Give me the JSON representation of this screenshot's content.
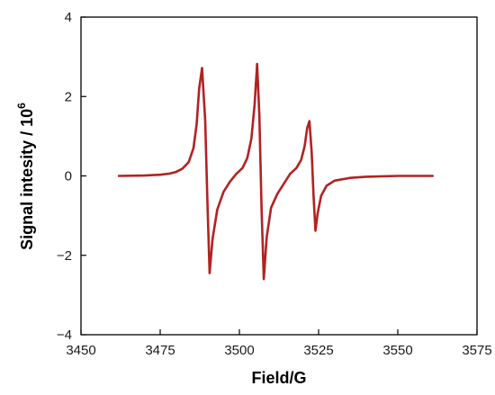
{
  "chart_data": {
    "type": "line",
    "title": "",
    "xlabel": "Field/G",
    "ylabel_main": "Signal intesity / 10",
    "ylabel_exponent": "6",
    "xlim": [
      3450,
      3575
    ],
    "ylim": [
      -4,
      4
    ],
    "x_ticks": [
      3450,
      3475,
      3500,
      3525,
      3550,
      3575
    ],
    "y_ticks": [
      -4,
      -2,
      0,
      2,
      4
    ],
    "x_tick_labels": [
      "3450",
      "3475",
      "3500",
      "3525",
      "3550",
      "3575"
    ],
    "y_tick_labels": [
      "−4",
      "−2",
      "0",
      "2",
      "4"
    ],
    "grid": false,
    "legend": "none",
    "series": [
      {
        "color": "#b22222",
        "x": [
          3462,
          3470,
          3475,
          3478,
          3480,
          3482,
          3484,
          3485.5,
          3486.5,
          3487.3,
          3488.2,
          3489.2,
          3489.9,
          3490.6,
          3491.5,
          3493,
          3495,
          3497,
          3499,
          3501,
          3502.5,
          3503.8,
          3504.8,
          3505.6,
          3506.3,
          3507.0,
          3507.7,
          3508.6,
          3510,
          3512,
          3514,
          3516,
          3518,
          3519.5,
          3520.6,
          3521.4,
          3522.1,
          3522.8,
          3523.4,
          3524.0,
          3524.7,
          3525.8,
          3527.5,
          3530,
          3535,
          3540,
          3550,
          3561
        ],
        "y": [
          0.0,
          0.01,
          0.03,
          0.06,
          0.1,
          0.18,
          0.35,
          0.7,
          1.3,
          2.2,
          2.72,
          1.4,
          -0.6,
          -2.45,
          -1.6,
          -0.85,
          -0.4,
          -0.15,
          0.05,
          0.2,
          0.45,
          0.95,
          1.8,
          2.82,
          1.5,
          -0.8,
          -2.6,
          -1.55,
          -0.8,
          -0.45,
          -0.2,
          0.05,
          0.2,
          0.4,
          0.75,
          1.2,
          1.38,
          0.6,
          -0.5,
          -1.38,
          -0.95,
          -0.5,
          -0.25,
          -0.12,
          -0.05,
          -0.02,
          0.0,
          0.0
        ]
      }
    ]
  }
}
